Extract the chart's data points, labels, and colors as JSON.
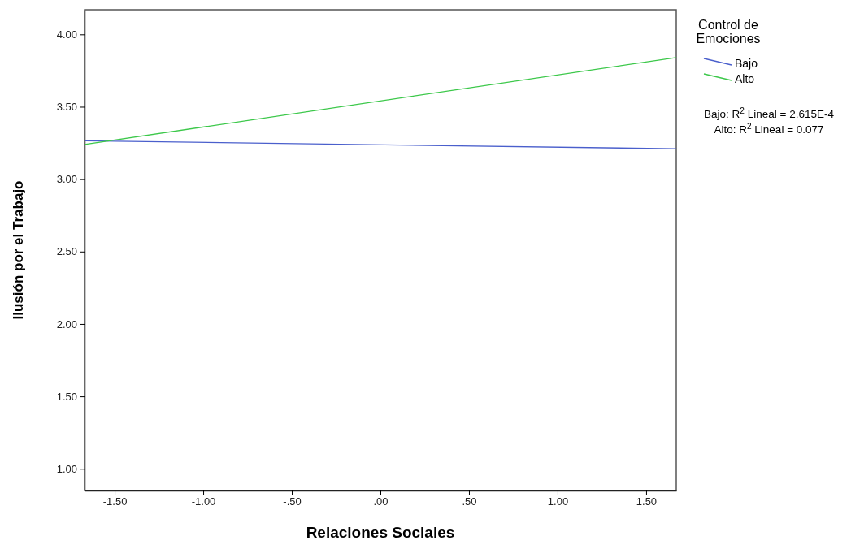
{
  "chart_data": {
    "type": "line",
    "xlabel": "Relaciones Sociales",
    "ylabel": "Ilusión por el Trabajo",
    "legend_title": "Control de Emociones",
    "legend": "top right",
    "grid": false,
    "marker": "none",
    "xlim": [
      -1.67,
      1.67
    ],
    "ylim": [
      0.85,
      4.17
    ],
    "xticks": [
      {
        "value": -1.5,
        "label": "-1.50"
      },
      {
        "value": -1,
        "label": "-1.00"
      },
      {
        "value": -0.5,
        "label": "-.50"
      },
      {
        "value": 0,
        "label": ".00"
      },
      {
        "value": 0.5,
        "label": ".50"
      },
      {
        "value": 1,
        "label": "1.00"
      },
      {
        "value": 1.5,
        "label": "1.50"
      }
    ],
    "yticks": [
      {
        "value": 1,
        "label": "1.00"
      },
      {
        "value": 1.5,
        "label": "1.50"
      },
      {
        "value": 2,
        "label": "2.00"
      },
      {
        "value": 2.5,
        "label": "2.50"
      },
      {
        "value": 3,
        "label": "3.00"
      },
      {
        "value": 3.5,
        "label": "3.50"
      },
      {
        "value": 4,
        "label": "4.00"
      }
    ],
    "x": [
      -1.67,
      1.67
    ],
    "series": [
      {
        "name": "Bajo",
        "color": "#4a5fcc",
        "values": [
          3.265,
          3.21
        ]
      },
      {
        "name": "Alto",
        "color": "#3cc84a",
        "values": [
          3.24,
          3.84
        ]
      }
    ],
    "annotations": [
      "Bajo: R$^{2}$ Lineal = 2.615E-4",
      "Alto: R$^{2}$ Lineal = 0.077"
    ]
  }
}
